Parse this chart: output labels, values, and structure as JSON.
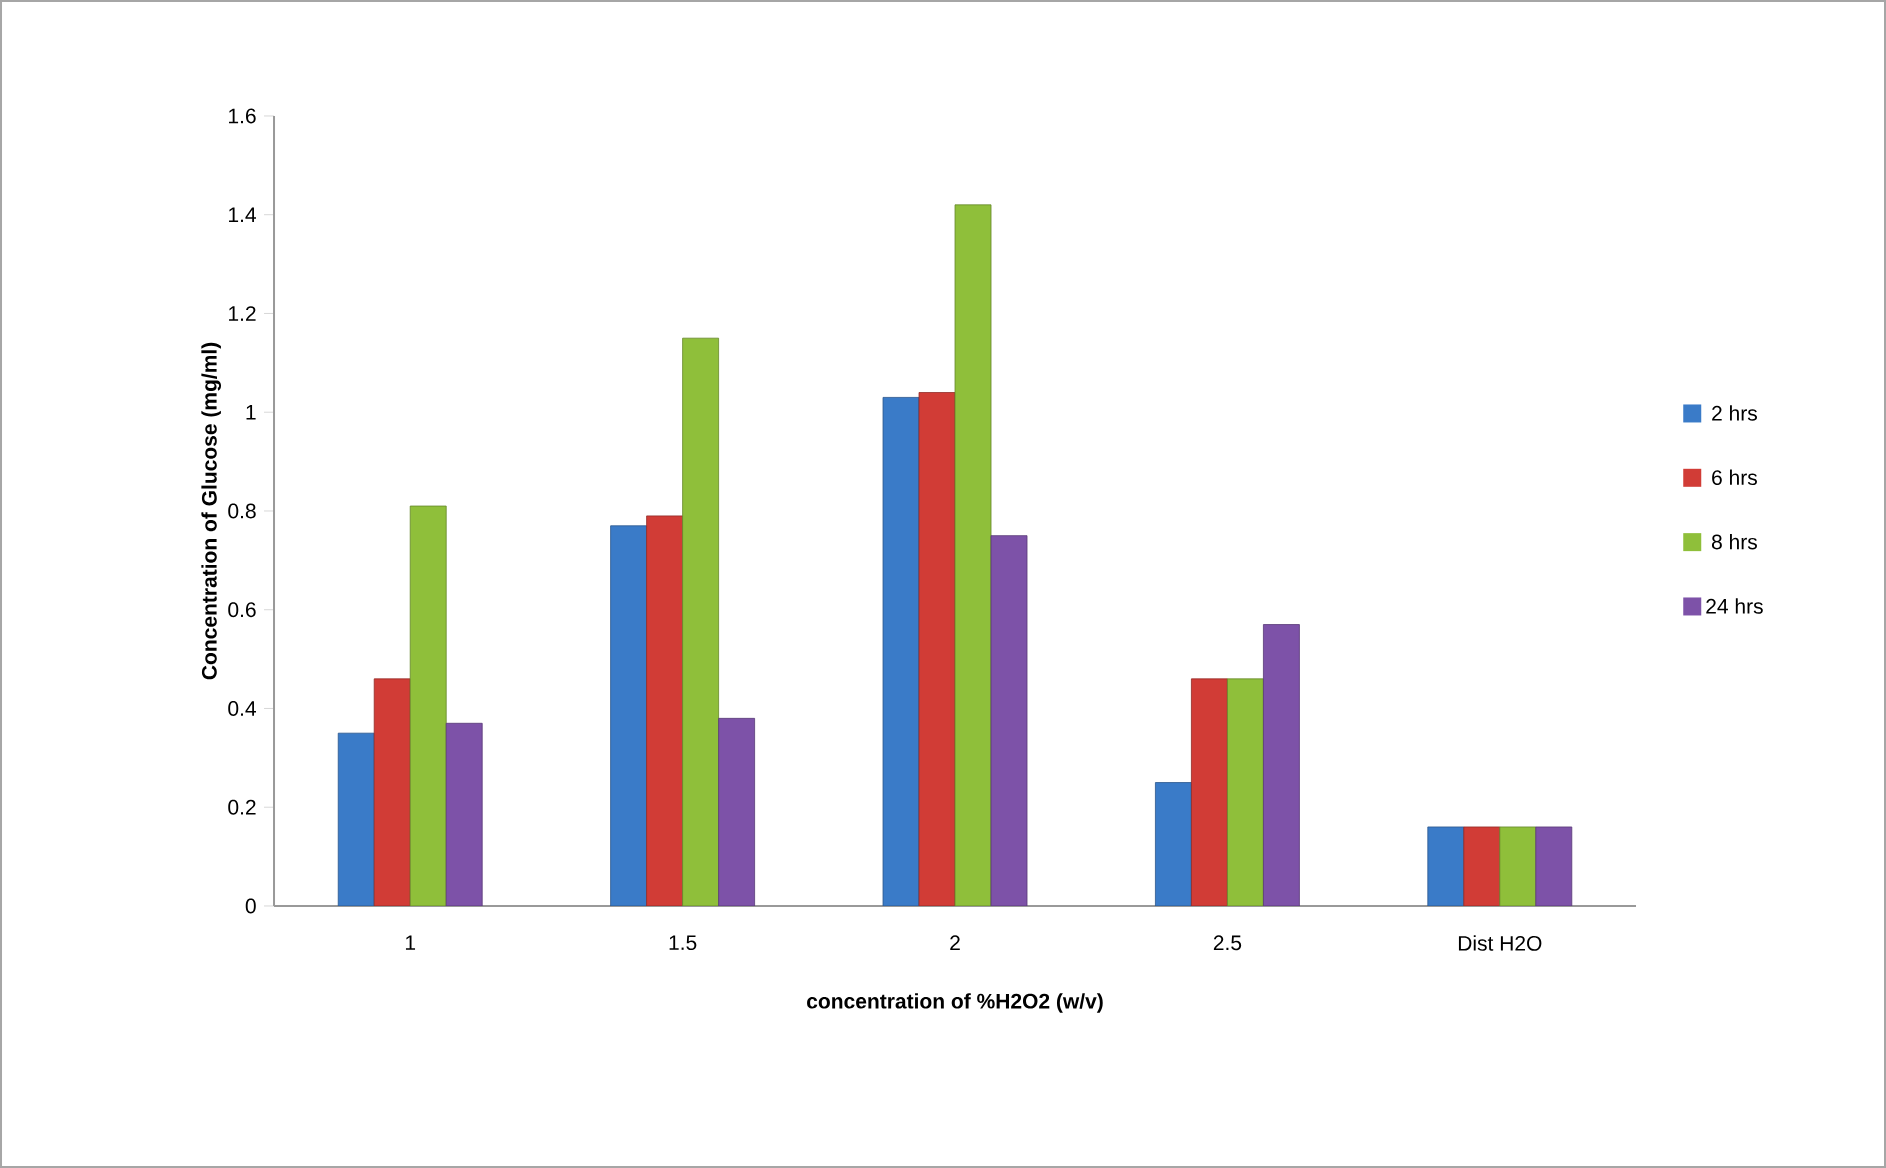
{
  "chart_data": {
    "type": "bar",
    "xlabel": "concentration of %H2O2 (w/v)",
    "ylabel": "Concentration of Glucose (mg/ml)",
    "categories": [
      "1",
      "1.5",
      "2",
      "2.5",
      "Dist H2O"
    ],
    "series": [
      {
        "name": "2  hrs",
        "color": "#3a7bc8",
        "values": [
          0.35,
          0.77,
          1.03,
          0.25,
          0.16
        ]
      },
      {
        "name": "6 hrs",
        "color": "#d13c36",
        "values": [
          0.46,
          0.79,
          1.04,
          0.46,
          0.16
        ]
      },
      {
        "name": "8 hrs",
        "color": "#8fbf3a",
        "values": [
          0.81,
          1.15,
          1.42,
          0.46,
          0.16
        ]
      },
      {
        "name": "24 hrs",
        "color": "#7d52a8",
        "values": [
          0.37,
          0.38,
          0.75,
          0.57,
          0.16
        ]
      }
    ],
    "ylim": [
      0,
      1.6
    ],
    "yticks": [
      0,
      0.2,
      0.4,
      0.6,
      0.8,
      1,
      1.2,
      1.4,
      1.6
    ],
    "legend": "right"
  }
}
